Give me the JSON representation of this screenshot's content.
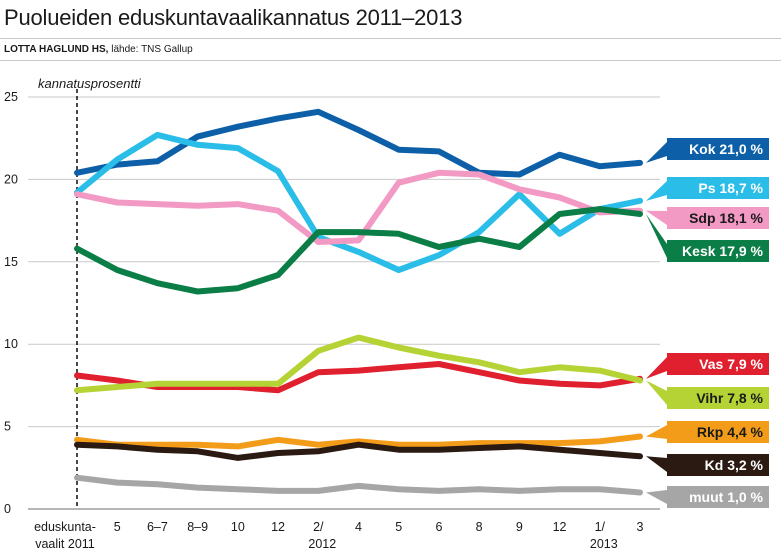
{
  "header": {
    "title": "Puolueiden eduskuntavaalikannatus 2011–2013",
    "author": "LOTTA HAGLUND HS,",
    "source": "lähde: TNS Gallup"
  },
  "chart_data": {
    "type": "line",
    "ylabel": "kannatusprosentti",
    "ylim": [
      0,
      25
    ],
    "yticks": [
      "0",
      "5",
      "10",
      "15",
      "20",
      "25"
    ],
    "categories": [
      {
        "label": "eduskunta-",
        "label2": "vaalit 2011"
      },
      {
        "label": "5",
        "label2": ""
      },
      {
        "label": "6–7",
        "label2": ""
      },
      {
        "label": "8–9",
        "label2": ""
      },
      {
        "label": "10",
        "label2": ""
      },
      {
        "label": "12",
        "label2": ""
      },
      {
        "label": "2/",
        "label2": "2012"
      },
      {
        "label": "4",
        "label2": ""
      },
      {
        "label": "5",
        "label2": ""
      },
      {
        "label": "6",
        "label2": ""
      },
      {
        "label": "8",
        "label2": ""
      },
      {
        "label": "9",
        "label2": ""
      },
      {
        "label": "12",
        "label2": ""
      },
      {
        "label": "1/",
        "label2": "2013"
      },
      {
        "label": "3",
        "label2": ""
      }
    ],
    "series": [
      {
        "name": "Kok",
        "label": "Kok 21,0 %",
        "color": "#0d5fa8",
        "dark": false,
        "values": [
          20.4,
          20.9,
          21.1,
          22.6,
          23.2,
          23.7,
          24.1,
          23.0,
          21.8,
          21.7,
          20.4,
          20.3,
          21.5,
          20.8,
          21.0
        ]
      },
      {
        "name": "Ps",
        "label": "Ps 18,7 %",
        "color": "#29bde8",
        "dark": false,
        "values": [
          19.2,
          21.2,
          22.7,
          22.1,
          21.9,
          20.5,
          16.5,
          15.6,
          14.5,
          15.4,
          16.8,
          19.1,
          16.7,
          18.2,
          18.7
        ]
      },
      {
        "name": "Sdp",
        "label": "Sdp 18,1 %",
        "color": "#f299c4",
        "dark": true,
        "values": [
          19.1,
          18.6,
          18.5,
          18.4,
          18.5,
          18.1,
          16.2,
          16.3,
          19.8,
          20.4,
          20.3,
          19.4,
          18.9,
          18.0,
          18.1
        ]
      },
      {
        "name": "Kesk",
        "label": "Kesk 17,9 %",
        "color": "#0b7d46",
        "dark": false,
        "values": [
          15.8,
          14.5,
          13.7,
          13.2,
          13.4,
          14.2,
          16.8,
          16.8,
          16.7,
          15.9,
          16.4,
          15.9,
          17.9,
          18.2,
          17.9
        ]
      },
      {
        "name": "Vas",
        "label": "Vas 7,9 %",
        "color": "#e0202f",
        "dark": false,
        "values": [
          8.1,
          7.8,
          7.4,
          7.4,
          7.4,
          7.2,
          8.3,
          8.4,
          8.6,
          8.8,
          8.3,
          7.8,
          7.6,
          7.5,
          7.9
        ]
      },
      {
        "name": "Vihr",
        "label": "Vihr 7,8 %",
        "color": "#b5d334",
        "dark": true,
        "values": [
          7.2,
          7.4,
          7.6,
          7.6,
          7.6,
          7.6,
          9.6,
          10.4,
          9.8,
          9.3,
          8.9,
          8.3,
          8.6,
          8.4,
          7.8
        ]
      },
      {
        "name": "Rkp",
        "label": "Rkp 4,4 %",
        "color": "#f39c1a",
        "dark": true,
        "values": [
          4.2,
          3.9,
          3.9,
          3.9,
          3.8,
          4.2,
          3.9,
          4.1,
          3.9,
          3.9,
          4.0,
          4.0,
          4.0,
          4.1,
          4.4
        ]
      },
      {
        "name": "Kd",
        "label": "Kd 3,2 %",
        "color": "#2a1a12",
        "dark": false,
        "values": [
          3.9,
          3.8,
          3.6,
          3.5,
          3.1,
          3.4,
          3.5,
          3.9,
          3.6,
          3.6,
          3.7,
          3.8,
          3.6,
          3.4,
          3.2
        ]
      },
      {
        "name": "muut",
        "label": "muut 1,0 %",
        "color": "#a6a6a6",
        "dark": false,
        "values": [
          1.9,
          1.6,
          1.5,
          1.3,
          1.2,
          1.1,
          1.1,
          1.4,
          1.2,
          1.1,
          1.2,
          1.1,
          1.2,
          1.2,
          1.0
        ]
      }
    ]
  }
}
